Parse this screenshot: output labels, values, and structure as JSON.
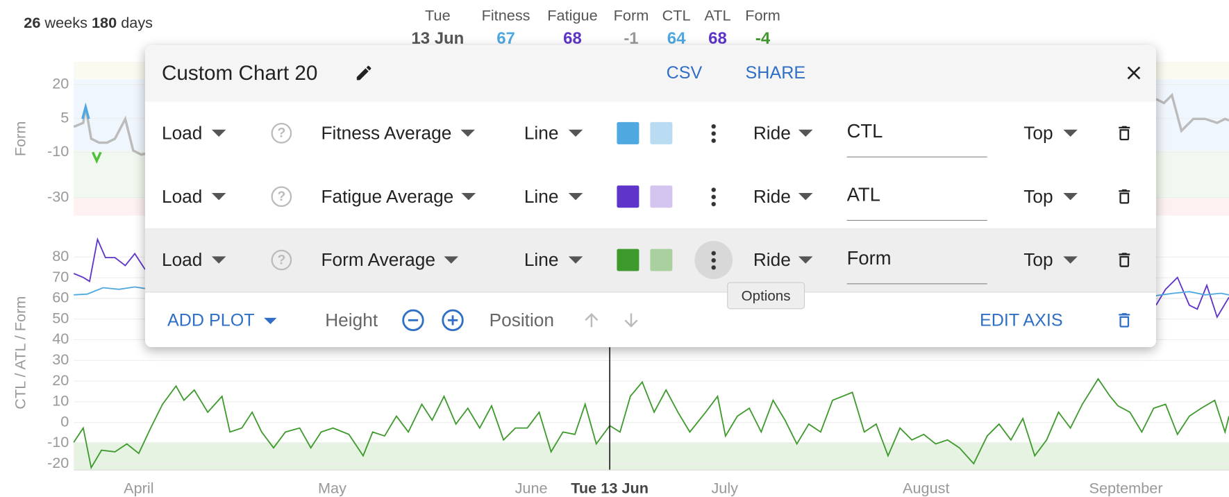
{
  "header": {
    "weeks": "26",
    "weeks_label": "weeks",
    "days": "180",
    "days_label": "days",
    "columns": [
      {
        "label": "Tue",
        "value": "13 Jun",
        "color": "#555555"
      },
      {
        "label": "Fitness",
        "value": 67,
        "color": "#4fa8e0"
      },
      {
        "label": "Fatigue",
        "value": 68,
        "color": "#5e35c8"
      },
      {
        "label": "Form",
        "value": -1,
        "color": "#999999"
      },
      {
        "label": "CTL",
        "value": 64,
        "color": "#4fa8e0"
      },
      {
        "label": "ATL",
        "value": 68,
        "color": "#5e35c8"
      },
      {
        "label": "Form",
        "value": -4,
        "color": "#3e9a2c"
      }
    ]
  },
  "dialog": {
    "title": "Custom Chart 20",
    "actions": [
      "CSV",
      "SHARE"
    ],
    "rows": [
      {
        "source": "Load",
        "metric": "Fitness Average",
        "style": "Line",
        "color": "#4fa8e0",
        "fill": "#b9dcf2",
        "sport": "Ride",
        "label": "CTL",
        "position": "Top"
      },
      {
        "source": "Load",
        "metric": "Fatigue Average",
        "style": "Line",
        "color": "#5e35c8",
        "fill": "#d3c5f0",
        "sport": "Ride",
        "label": "ATL",
        "position": "Top"
      },
      {
        "source": "Load",
        "metric": "Form Average",
        "style": "Line",
        "color": "#3e9a2c",
        "fill": "#a9d09e",
        "sport": "Ride",
        "label": "Form",
        "position": "Top"
      }
    ],
    "footer": {
      "add_plot": "ADD PLOT",
      "height": "Height",
      "position": "Position",
      "edit_axis": "EDIT AXIS"
    },
    "tooltip": "Options"
  },
  "chart_top": {
    "ylabel": "Form",
    "ylim": [
      30,
      -38
    ],
    "yticks": [
      20,
      5,
      -10,
      -30
    ]
  },
  "chart_bottom": {
    "ylabel": "CTL / ATL / Form",
    "ylim": [
      89.3,
      -23
    ],
    "yticks": [
      80,
      70,
      60,
      50,
      40,
      30,
      20,
      10,
      0,
      -10,
      -20
    ]
  },
  "xaxis": {
    "months": [
      "April",
      "May",
      "June",
      "July",
      "August",
      "September"
    ],
    "cursor": "Tue 13 Jun"
  }
}
